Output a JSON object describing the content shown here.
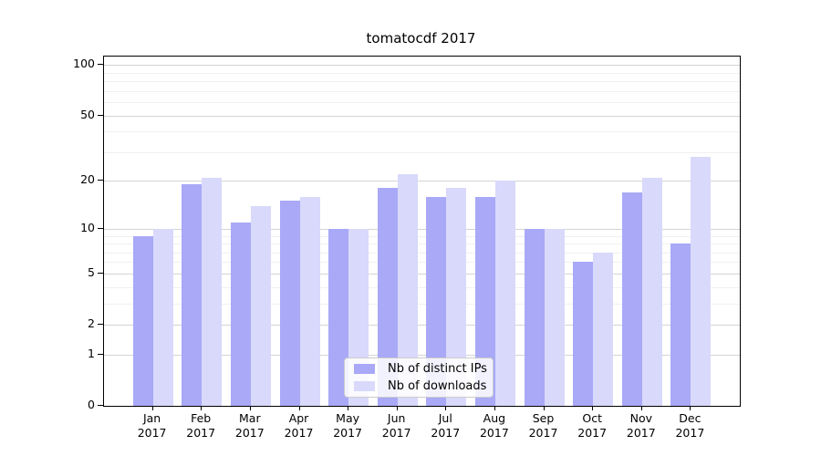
{
  "title": "tomatocdf 2017",
  "chart_data": {
    "type": "bar",
    "months": [
      "Jan",
      "Feb",
      "Mar",
      "Apr",
      "May",
      "Jun",
      "Jul",
      "Aug",
      "Sep",
      "Oct",
      "Nov",
      "Dec"
    ],
    "year_label": "2017",
    "categories": [
      "Jan 2017",
      "Feb 2017",
      "Mar 2017",
      "Apr 2017",
      "May 2017",
      "Jun 2017",
      "Jul 2017",
      "Aug 2017",
      "Sep 2017",
      "Oct 2017",
      "Nov 2017",
      "Dec 2017"
    ],
    "series": [
      {
        "name": "Nb of distinct IPs",
        "color": "#a9a9f7",
        "values": [
          9,
          19,
          11,
          15,
          10,
          18,
          16,
          16,
          10,
          6,
          17,
          8
        ]
      },
      {
        "name": "Nb of downloads",
        "color": "#d9d9fb",
        "values": [
          10,
          21,
          14,
          16,
          10,
          22,
          18,
          20,
          10,
          7,
          21,
          28
        ]
      }
    ],
    "yscale": "log10(1+v), linear below 1",
    "y_tick_values": [
      100,
      50,
      20,
      10,
      5,
      2,
      1,
      0
    ],
    "y_tick_labels": [
      "100",
      "50",
      "20",
      "10",
      "5",
      "2",
      "1",
      "0"
    ],
    "y_minor_tick_values": [
      3,
      4,
      6,
      7,
      8,
      9,
      30,
      40,
      60,
      70,
      80,
      90
    ],
    "ylim": [
      0,
      112
    ],
    "xlabel": "",
    "ylabel": "",
    "grid": "on",
    "legend_position": "lower center inside plot",
    "colors": {
      "spine": "#000000",
      "grid_major": "#d4d4d4",
      "grid_minor": "#f0f0f0",
      "background": "#ffffff"
    }
  }
}
